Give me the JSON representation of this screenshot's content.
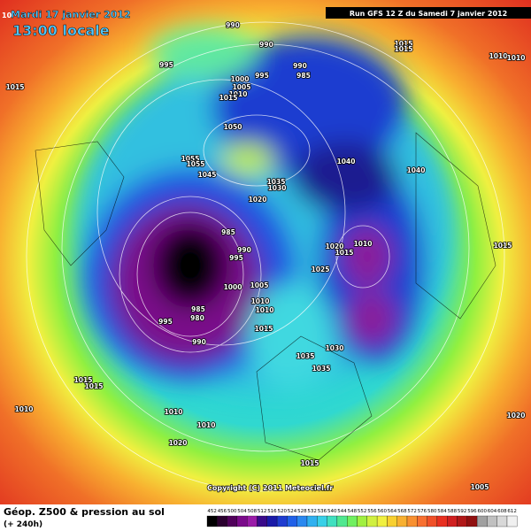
{
  "header": {
    "date": "Mardi 17 janvier 2012",
    "time": "13:00 locale",
    "run": "Run GFS 12 Z du Samedi 7 janvier 2012",
    "corner": "10"
  },
  "isobars": [
    "990",
    "990",
    "995",
    "990",
    "985",
    "995",
    "1000",
    "1005",
    "1010",
    "1015",
    "1015",
    "1015",
    "1015",
    "1010",
    "1050",
    "1055",
    "1055",
    "1045",
    "1035",
    "1030",
    "1020",
    "1040",
    "1040",
    "985",
    "990",
    "995",
    "1000",
    "1005",
    "1010",
    "1010",
    "985",
    "980",
    "995",
    "990",
    "1015",
    "1025",
    "1020",
    "1015",
    "1010",
    "1030",
    "1035",
    "1035",
    "1015",
    "1015",
    "1015",
    "1010",
    "1010",
    "1010",
    "1020",
    "1015",
    "1020",
    "1005",
    "1010"
  ],
  "footer": {
    "title": "Géop. Z500 & pression au sol",
    "lead": "(+ 240h)",
    "copyright": "Copyright (C) 2011 Meteociel.fr"
  },
  "scale": {
    "values": [
      452,
      456,
      500,
      504,
      508,
      512,
      516,
      520,
      524,
      528,
      532,
      536,
      540,
      544,
      548,
      552,
      556,
      560,
      564,
      568,
      572,
      576,
      580,
      584,
      588,
      592,
      596,
      600,
      604,
      608,
      612
    ],
    "colors": [
      "#000000",
      "#2a002e",
      "#50005a",
      "#7a0a8a",
      "#9a1ca8",
      "#3a0a8a",
      "#1a1aa8",
      "#1f3cd0",
      "#2060e8",
      "#2a88f0",
      "#30b0f0",
      "#38d0e8",
      "#40e0c0",
      "#50e890",
      "#70f060",
      "#a0f040",
      "#d0f040",
      "#f0f040",
      "#f8d030",
      "#f8b030",
      "#f89030",
      "#f87030",
      "#f05028",
      "#e83020",
      "#d02020",
      "#b01818",
      "#901010",
      "#a0a0a0",
      "#c0c0c0",
      "#d8d8d8",
      "#f0f0f0"
    ]
  }
}
